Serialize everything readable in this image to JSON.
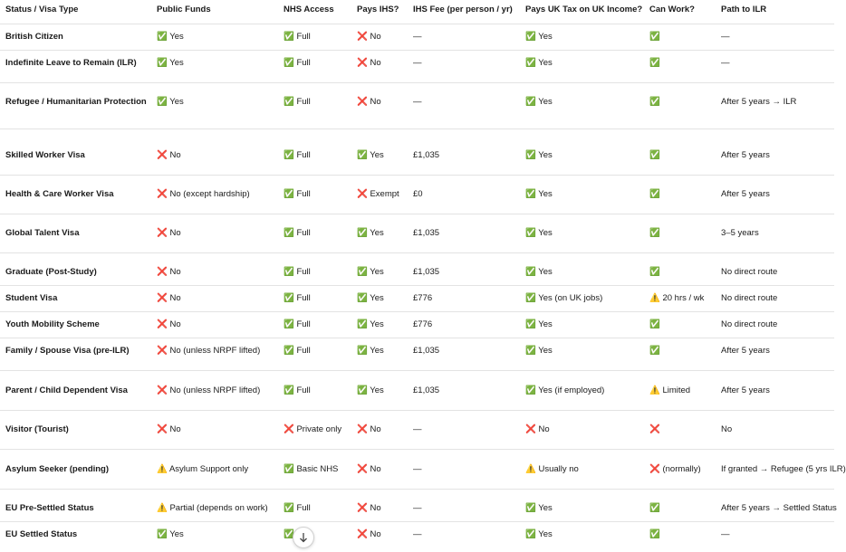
{
  "table": {
    "header": [
      "Status / Visa Type",
      "Public Funds",
      "NHS Access",
      "Pays IHS?",
      "IHS Fee (per person / yr)",
      "Pays UK Tax on UK Income?",
      "Can Work?",
      "Path to ILR"
    ],
    "rows": [
      [
        "British Citizen",
        "✅ Yes",
        "✅ Full",
        "❌ No",
        "—",
        "✅ Yes",
        "✅",
        "—"
      ],
      [
        "Indefinite Leave to Remain (ILR)",
        "✅ Yes",
        "✅ Full",
        "❌ No",
        "—",
        "✅ Yes",
        "✅",
        "—"
      ],
      [
        "Refugee / Humanitarian Protection",
        "✅ Yes",
        "✅ Full",
        "❌ No",
        "—",
        "✅ Yes",
        "✅",
        "After 5 years → ILR"
      ],
      [
        "Skilled Worker Visa",
        "❌ No",
        "✅ Full",
        "✅ Yes",
        "£1,035",
        "✅ Yes",
        "✅",
        "After 5 years"
      ],
      [
        "Health & Care Worker Visa",
        "❌ No (except hardship)",
        "✅ Full",
        "❌ Exempt",
        "£0",
        "✅ Yes",
        "✅",
        "After 5 years"
      ],
      [
        "Global Talent Visa",
        "❌ No",
        "✅ Full",
        "✅ Yes",
        "£1,035",
        "✅ Yes",
        "✅",
        "3–5 years"
      ],
      [
        "Graduate (Post-Study)",
        "❌ No",
        "✅ Full",
        "✅ Yes",
        "£1,035",
        "✅ Yes",
        "✅",
        "No direct route"
      ],
      [
        "Student Visa",
        "❌ No",
        "✅ Full",
        "✅ Yes",
        "£776",
        "✅ Yes (on UK jobs)",
        "⚠️ 20 hrs / wk",
        "No direct route"
      ],
      [
        "Youth Mobility Scheme",
        "❌ No",
        "✅ Full",
        "✅ Yes",
        "£776",
        "✅ Yes",
        "✅",
        "No direct route"
      ],
      [
        "Family / Spouse Visa (pre-ILR)",
        "❌ No (unless NRPF lifted)",
        "✅ Full",
        "✅ Yes",
        "£1,035",
        "✅ Yes",
        "✅",
        "After 5 years"
      ],
      [
        "Parent / Child Dependent Visa",
        "❌ No (unless NRPF lifted)",
        "✅ Full",
        "✅ Yes",
        "£1,035",
        "✅ Yes (if employed)",
        "⚠️ Limited",
        "After 5 years"
      ],
      [
        "Visitor (Tourist)",
        "❌ No",
        "❌ Private only",
        "❌ No",
        "—",
        "❌ No",
        "❌",
        "No"
      ],
      [
        "Asylum Seeker (pending)",
        "⚠️ Asylum Support only",
        "✅ Basic NHS",
        "❌ No",
        "—",
        "⚠️ Usually no",
        "❌ (normally)",
        "If granted → Refugee (5 yrs ILR)"
      ],
      [
        "EU Pre-Settled Status",
        "⚠️ Partial (depends on work)",
        "✅ Full",
        "❌ No",
        "—",
        "✅ Yes",
        "✅",
        "After 5 years → Settled Status"
      ],
      [
        "EU Settled Status",
        "✅ Yes",
        "✅ Full",
        "❌ No",
        "—",
        "✅ Yes",
        "✅",
        "—"
      ]
    ]
  }
}
